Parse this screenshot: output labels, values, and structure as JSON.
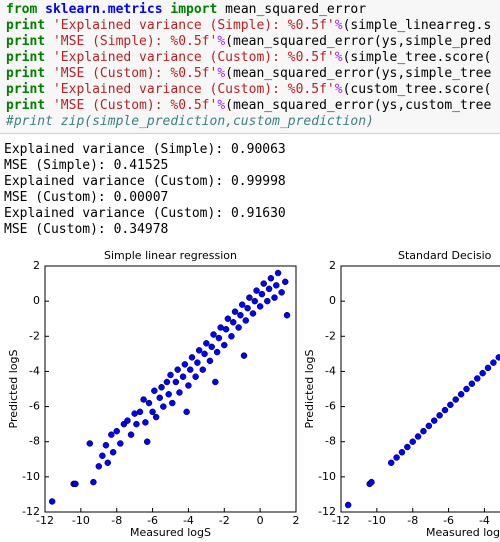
{
  "code": {
    "lines": [
      [
        {
          "text": "from",
          "color": "#008000",
          "bold": true
        },
        {
          "text": " ",
          "color": "#000000"
        },
        {
          "text": "sklearn.metrics",
          "color": "#0000ff",
          "bold": true
        },
        {
          "text": " ",
          "color": "#000000"
        },
        {
          "text": "import",
          "color": "#008000",
          "bold": true
        },
        {
          "text": " mean_squared_error",
          "color": "#000000"
        }
      ],
      [
        {
          "text": "print",
          "color": "#008000",
          "bold": true
        },
        {
          "text": " ",
          "color": "#000000"
        },
        {
          "text": "'Explained variance (Simple): %0.5f'",
          "color": "#ba2121"
        },
        {
          "text": "%",
          "color": "#aa22ff"
        },
        {
          "text": "(simple_linearreg.s",
          "color": "#000000"
        }
      ],
      [
        {
          "text": "print",
          "color": "#008000",
          "bold": true
        },
        {
          "text": " ",
          "color": "#000000"
        },
        {
          "text": "'MSE (Simple): %0.5f'",
          "color": "#ba2121"
        },
        {
          "text": "%",
          "color": "#aa22ff"
        },
        {
          "text": "(mean_squared_error(ys,simple_pred",
          "color": "#000000"
        }
      ],
      [
        {
          "text": "print",
          "color": "#008000",
          "bold": true
        },
        {
          "text": " ",
          "color": "#000000"
        },
        {
          "text": "'Explained variance (Custom): %0.5f'",
          "color": "#ba2121"
        },
        {
          "text": "%",
          "color": "#aa22ff"
        },
        {
          "text": "(simple_tree.score(",
          "color": "#000000"
        }
      ],
      [
        {
          "text": "print",
          "color": "#008000",
          "bold": true
        },
        {
          "text": " ",
          "color": "#000000"
        },
        {
          "text": "'MSE (Custom): %0.5f'",
          "color": "#ba2121"
        },
        {
          "text": "%",
          "color": "#aa22ff"
        },
        {
          "text": "(mean_squared_error(ys,simple_tree",
          "color": "#000000"
        }
      ],
      [
        {
          "text": "print",
          "color": "#008000",
          "bold": true
        },
        {
          "text": " ",
          "color": "#000000"
        },
        {
          "text": "'Explained variance (Custom): %0.5f'",
          "color": "#ba2121"
        },
        {
          "text": "%",
          "color": "#aa22ff"
        },
        {
          "text": "(custom_tree.score(",
          "color": "#000000"
        }
      ],
      [
        {
          "text": "print",
          "color": "#008000",
          "bold": true
        },
        {
          "text": " ",
          "color": "#000000"
        },
        {
          "text": "'MSE (Custom): %0.5f'",
          "color": "#ba2121"
        },
        {
          "text": "%",
          "color": "#aa22ff"
        },
        {
          "text": "(mean_squared_error(ys,custom_tree",
          "color": "#000000"
        }
      ],
      [
        {
          "text": "#print zip(simple_prediction,custom_prediction)",
          "color": "#408080",
          "italic": true
        }
      ]
    ]
  },
  "output": {
    "lines": [
      "Explained variance (Simple): 0.90063",
      "MSE (Simple): 0.41525",
      "Explained variance (Custom): 0.99998",
      "MSE (Custom): 0.00007",
      "Explained variance (Custom): 0.91630",
      "MSE (Custom): 0.34978"
    ]
  },
  "chart_data": [
    {
      "type": "scatter",
      "title": "Simple linear regression",
      "x_label": "Measured logS",
      "y_label": "Predicted logS",
      "color": "#0000ff",
      "xlim": [
        -12,
        2
      ],
      "ylim": [
        -12,
        2
      ],
      "xticks": [
        -12,
        -10,
        -8,
        -6,
        -4,
        -2,
        0,
        2
      ],
      "yticks": [
        -12,
        -10,
        -8,
        -6,
        -4,
        -2,
        0,
        2
      ],
      "x": [
        -11.6,
        -10.4,
        -10.3,
        -9.5,
        -9.3,
        -9.0,
        -8.8,
        -8.6,
        -8.5,
        -8.3,
        -8.2,
        -8.0,
        -7.8,
        -7.6,
        -7.4,
        -7.2,
        -7.0,
        -6.9,
        -6.7,
        -6.5,
        -6.4,
        -6.2,
        -6.0,
        -5.9,
        -5.8,
        -5.6,
        -5.5,
        -5.4,
        -5.2,
        -5.1,
        -5.0,
        -4.9,
        -4.7,
        -4.6,
        -4.5,
        -4.3,
        -4.2,
        -4.0,
        -3.9,
        -3.8,
        -3.6,
        -3.5,
        -3.4,
        -3.2,
        -3.1,
        -3.0,
        -2.8,
        -2.7,
        -2.6,
        -2.4,
        -2.3,
        -2.2,
        -2.0,
        -1.9,
        -1.8,
        -1.6,
        -1.5,
        -1.4,
        -1.2,
        -1.1,
        -1.0,
        -0.8,
        -0.7,
        -0.6,
        -0.4,
        -0.3,
        -0.2,
        0.0,
        0.1,
        0.2,
        0.4,
        0.5,
        0.6,
        0.8,
        0.9,
        1.0,
        1.2,
        1.4,
        1.5,
        -0.9,
        -2.5,
        -4.1,
        -6.3
      ],
      "values": [
        -11.4,
        -10.4,
        -10.4,
        -8.1,
        -10.3,
        -9.4,
        -8.8,
        -8.2,
        -9.2,
        -7.6,
        -8.6,
        -7.4,
        -8.1,
        -7.0,
        -6.8,
        -7.6,
        -6.4,
        -7.0,
        -6.3,
        -5.6,
        -6.9,
        -5.8,
        -6.3,
        -5.1,
        -6.6,
        -5.5,
        -4.9,
        -6.0,
        -4.6,
        -5.3,
        -4.2,
        -5.8,
        -4.6,
        -3.9,
        -5.2,
        -4.3,
        -3.6,
        -4.8,
        -3.9,
        -3.2,
        -4.3,
        -3.5,
        -2.8,
        -3.9,
        -3.0,
        -2.4,
        -3.4,
        -2.6,
        -1.9,
        -2.9,
        -2.1,
        -1.5,
        -2.5,
        -1.6,
        -1.0,
        -2.0,
        -1.2,
        -0.6,
        -1.5,
        -0.8,
        -0.2,
        -1.1,
        -0.4,
        0.2,
        -0.7,
        0.0,
        0.6,
        -0.3,
        0.4,
        1.0,
        0.0,
        0.7,
        1.3,
        0.2,
        0.9,
        1.6,
        0.5,
        1.1,
        -0.8,
        -3.1,
        -4.6,
        -6.3,
        -8.0
      ]
    },
    {
      "type": "scatter",
      "title": "Standard Decisio",
      "x_label": "Measured logS",
      "y_label": "Predicted logS",
      "color": "#0000ff",
      "xlim": [
        -12,
        2
      ],
      "ylim": [
        -12,
        2
      ],
      "xticks": [
        -12,
        -10,
        -8,
        -6,
        -4
      ],
      "yticks": [
        -12,
        -10,
        -8,
        -6,
        -4,
        -2,
        0,
        2
      ],
      "x": [
        -11.6,
        -10.4,
        -10.3,
        -9.2,
        -8.9,
        -8.6,
        -8.3,
        -8.0,
        -7.7,
        -7.4,
        -7.1,
        -6.8,
        -6.5,
        -6.2,
        -5.9,
        -5.6,
        -5.3,
        -5.0,
        -4.7,
        -4.4,
        -4.1,
        -3.8,
        -3.5,
        -3.2
      ],
      "values": [
        -11.6,
        -10.4,
        -10.3,
        -9.2,
        -8.9,
        -8.6,
        -8.3,
        -8.0,
        -7.7,
        -7.4,
        -7.1,
        -6.8,
        -6.5,
        -6.2,
        -5.9,
        -5.6,
        -5.3,
        -5.0,
        -4.7,
        -4.4,
        -4.1,
        -3.8,
        -3.5,
        -3.2
      ]
    }
  ]
}
